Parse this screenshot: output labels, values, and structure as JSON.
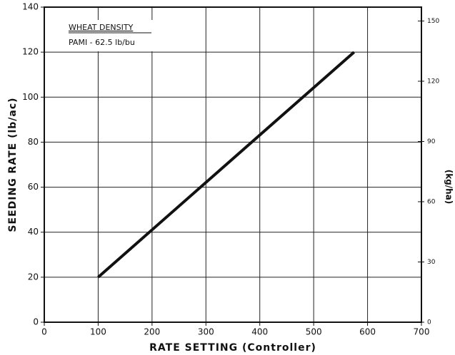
{
  "chart_data": {
    "type": "line",
    "x_label": "RATE SETTING (Controller)",
    "y_label": "SEEDING RATE (lb/ac)",
    "y2_label": "(kg/ha)",
    "annotations": [
      "WHEAT DENSITY",
      "PAMI - 62.5 lb/bu"
    ],
    "x": [
      100,
      575
    ],
    "series": [
      {
        "color": "#111111",
        "values": [
          20,
          120
        ]
      }
    ],
    "xlim": [
      0,
      700
    ],
    "xticks": [
      0,
      100,
      200,
      300,
      400,
      500,
      600,
      700
    ],
    "ylim": [
      0,
      140
    ],
    "yticks": [
      0,
      20,
      40,
      60,
      80,
      100,
      120,
      140
    ],
    "y2lim": [
      0,
      156.9
    ],
    "y2ticks": [
      0,
      30,
      60,
      90,
      120,
      150
    ],
    "grid": true
  }
}
